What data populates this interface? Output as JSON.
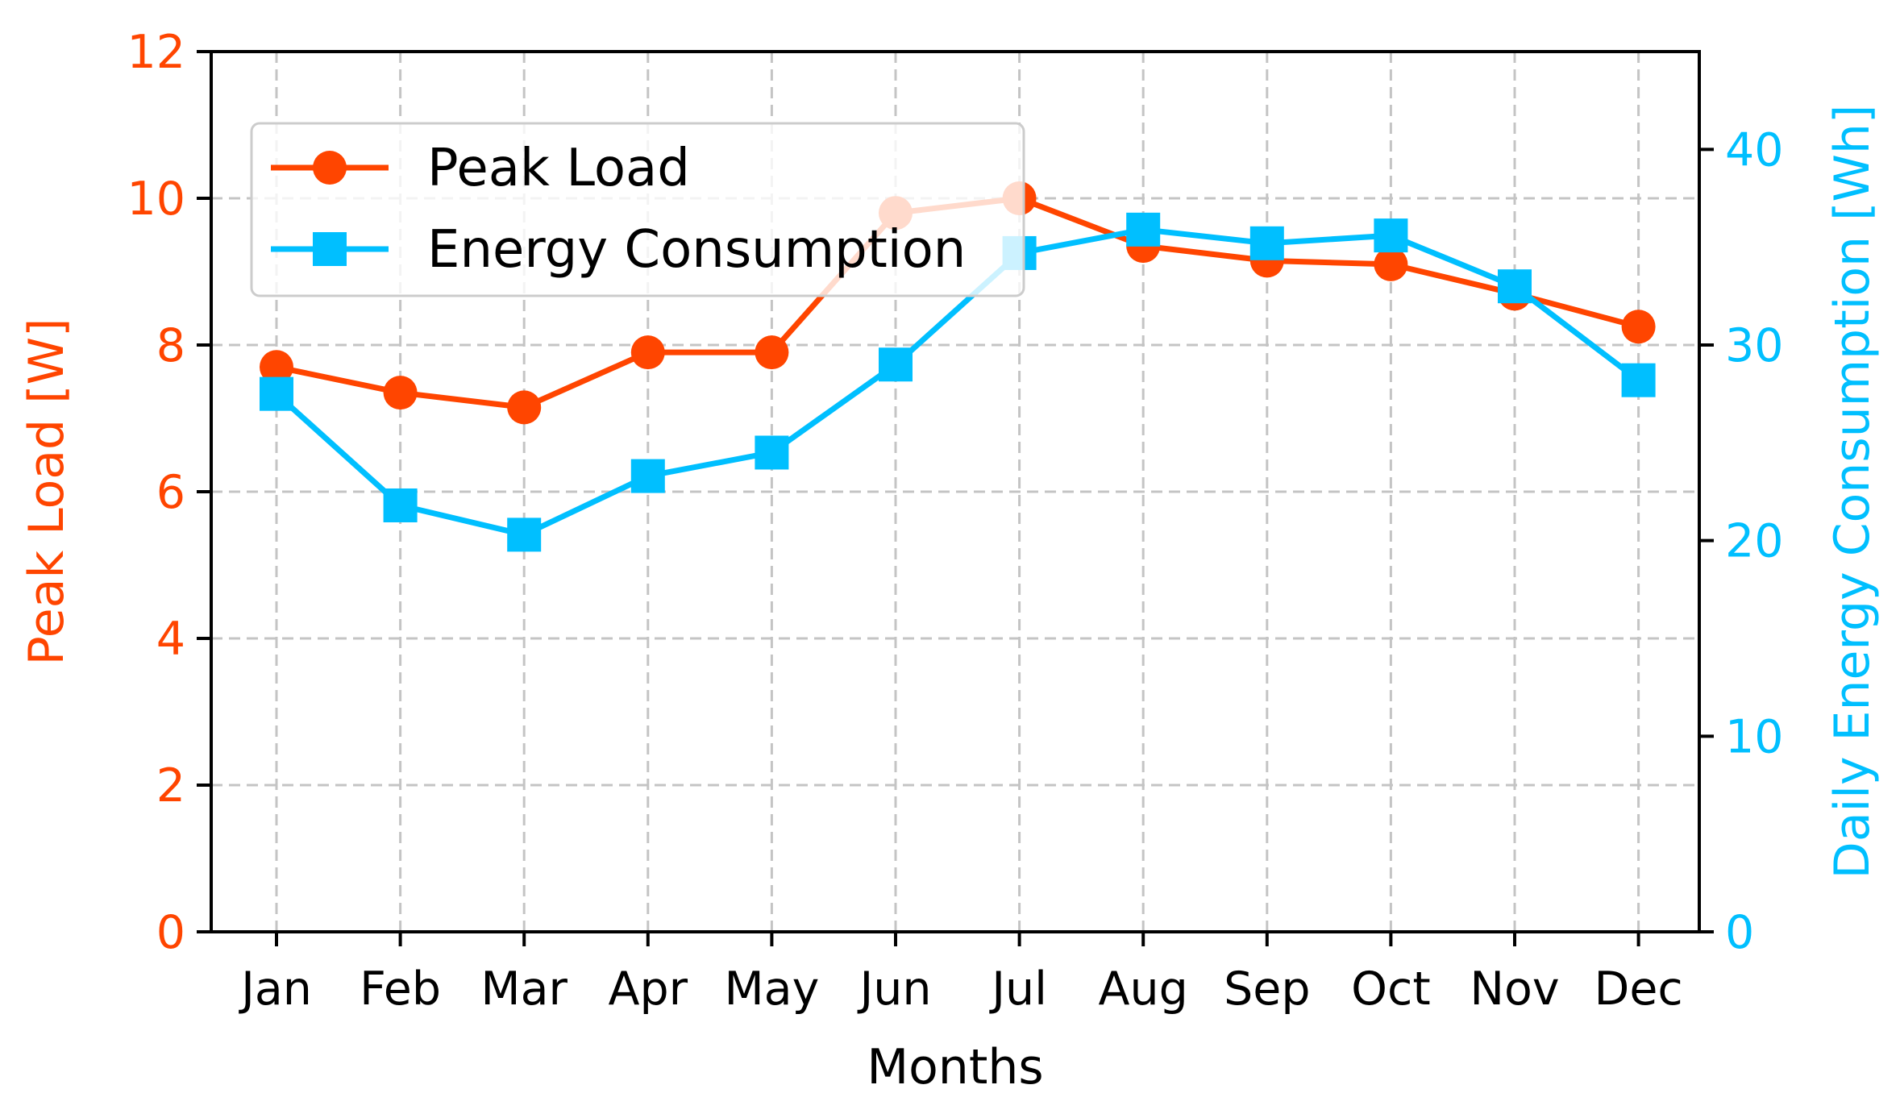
{
  "chart_data": {
    "type": "line",
    "title": "",
    "xlabel": "Months",
    "ylabel_left": "Peak Load [W]",
    "ylabel_right": "Daily Energy Consumption [Wh]",
    "categories": [
      "Jan",
      "Feb",
      "Mar",
      "Apr",
      "May",
      "Jun",
      "Jul",
      "Aug",
      "Sep",
      "Oct",
      "Nov",
      "Dec"
    ],
    "ylim_left": [
      0,
      12
    ],
    "yticks_left": [
      0,
      2,
      4,
      6,
      8,
      10,
      12
    ],
    "ylim_right": [
      0,
      45
    ],
    "yticks_right": [
      0,
      10,
      20,
      30,
      40
    ],
    "grid": true,
    "legend_position": "upper-left",
    "series": [
      {
        "name": "Peak Load",
        "axis": "left",
        "marker": "circle",
        "color": "#ff4500",
        "values": [
          7.7,
          7.35,
          7.15,
          7.9,
          7.9,
          9.8,
          10.0,
          9.35,
          9.15,
          9.1,
          8.7,
          8.25
        ]
      },
      {
        "name": "Energy Consumption",
        "axis": "right",
        "marker": "square",
        "color": "#00bfff",
        "values": [
          27.5,
          21.8,
          20.3,
          23.3,
          24.5,
          29.0,
          34.7,
          35.9,
          35.2,
          35.6,
          33.0,
          28.2
        ]
      }
    ]
  }
}
